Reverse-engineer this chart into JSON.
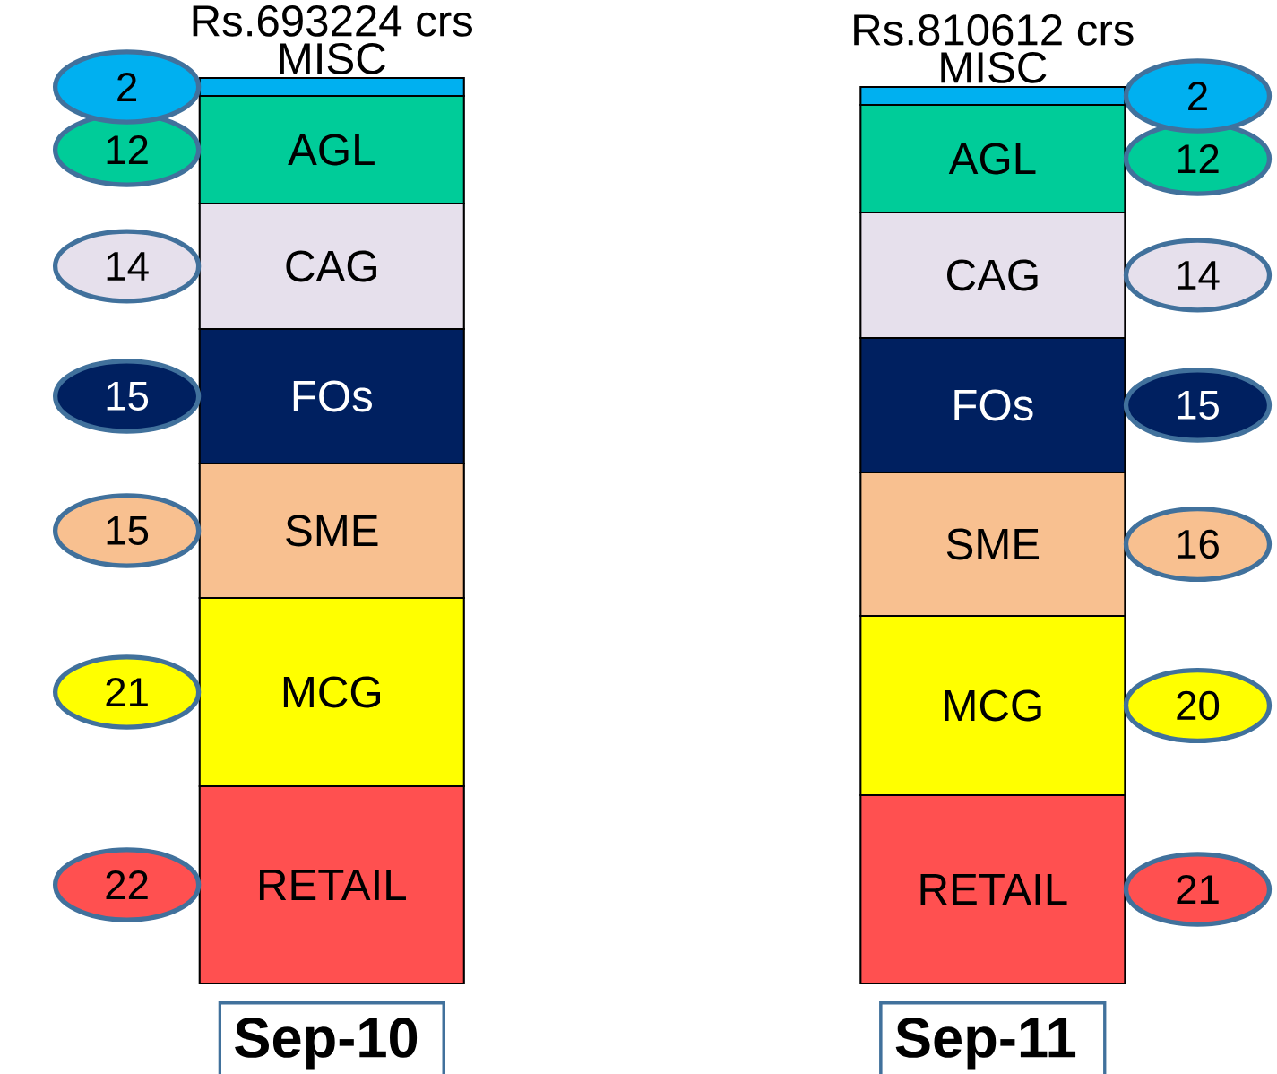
{
  "chart_data": {
    "type": "bar",
    "stacked": true,
    "data_labels": true,
    "categories": [
      "Sep-10",
      "Sep-11"
    ],
    "series": [
      {
        "name": "RETAIL",
        "color": "#ff5050",
        "values": [
          22,
          21
        ]
      },
      {
        "name": "MCG",
        "color": "#ffff00",
        "values": [
          21,
          20
        ]
      },
      {
        "name": "SME",
        "color": "#f8c090",
        "values": [
          15,
          16
        ]
      },
      {
        "name": "FOs",
        "color": "#002060",
        "values": [
          15,
          15
        ]
      },
      {
        "name": "CAG",
        "color": "#e6e0ec",
        "values": [
          14,
          14
        ]
      },
      {
        "name": "AGL",
        "color": "#00cc99",
        "values": [
          12,
          12
        ]
      },
      {
        "name": "MISC",
        "color": "#00b0f0",
        "values": [
          2,
          2
        ]
      }
    ],
    "totals": [
      "Rs.693224 crs",
      "Rs.810612 crs"
    ]
  }
}
